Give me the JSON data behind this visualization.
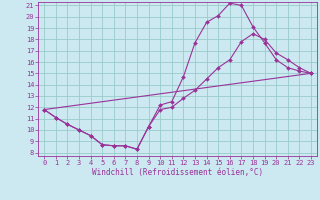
{
  "xlabel": "Windchill (Refroidissement éolien,°C)",
  "bg_color": "#cce8f0",
  "line_color": "#993399",
  "grid_color": "#99cccc",
  "xmin": 0,
  "xmax": 23,
  "ymin": 8,
  "ymax": 21,
  "line1_x": [
    0,
    1,
    2,
    3,
    4,
    5,
    6,
    7,
    8,
    9,
    10,
    11,
    12,
    13,
    14,
    15,
    16,
    17,
    18,
    19,
    20,
    21,
    22,
    23
  ],
  "line1_y": [
    11.8,
    11.1,
    10.5,
    10.0,
    9.5,
    8.7,
    8.6,
    8.6,
    8.3,
    10.3,
    12.2,
    12.5,
    14.7,
    17.7,
    19.5,
    20.1,
    21.2,
    21.0,
    19.1,
    17.7,
    16.2,
    15.5,
    15.2,
    15.0
  ],
  "line2_x": [
    0,
    1,
    2,
    3,
    4,
    5,
    6,
    7,
    8,
    9,
    10,
    11,
    12,
    13,
    14,
    15,
    16,
    17,
    18,
    19,
    20,
    21,
    22,
    23
  ],
  "line2_y": [
    11.8,
    11.1,
    10.5,
    10.0,
    9.5,
    8.7,
    8.6,
    8.6,
    8.3,
    10.3,
    11.8,
    12.0,
    12.8,
    13.5,
    14.5,
    15.5,
    16.2,
    17.8,
    18.5,
    18.0,
    16.8,
    16.2,
    15.5,
    15.0
  ],
  "line3_x": [
    0,
    23
  ],
  "line3_y": [
    11.8,
    15.0
  ],
  "yticks": [
    8,
    9,
    10,
    11,
    12,
    13,
    14,
    15,
    16,
    17,
    18,
    19,
    20,
    21
  ],
  "xticks": [
    0,
    1,
    2,
    3,
    4,
    5,
    6,
    7,
    8,
    9,
    10,
    11,
    12,
    13,
    14,
    15,
    16,
    17,
    18,
    19,
    20,
    21,
    22,
    23
  ],
  "xlabel_fontsize": 5.5,
  "tick_fontsize": 5.0
}
